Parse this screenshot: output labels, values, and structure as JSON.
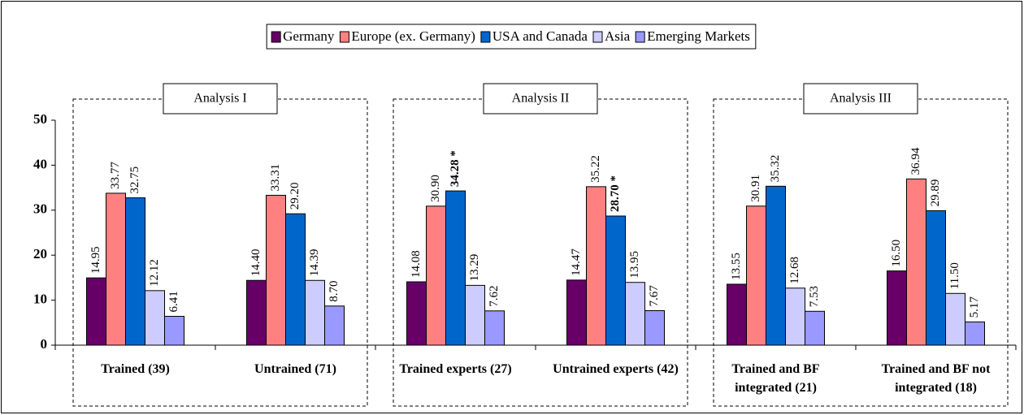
{
  "chart_data": {
    "type": "bar",
    "categories": [
      "Trained (39)",
      "Untrained (71)",
      "Trained experts (27)",
      "Untrained experts (42)",
      "Trained and BF integrated (21)",
      "Trained and BF not integrated (18)"
    ],
    "series": [
      {
        "name": "Germany",
        "color": "#660066",
        "values": [
          14.95,
          14.4,
          14.08,
          14.47,
          13.55,
          16.5
        ],
        "value_labels": [
          "14.95",
          "14.40",
          "14.08",
          "14.47",
          "13.55",
          "16.50"
        ]
      },
      {
        "name": "Europe (ex. Germany)",
        "color": "#ff8080",
        "values": [
          33.77,
          33.31,
          30.9,
          35.22,
          30.91,
          36.94
        ],
        "value_labels": [
          "33.77",
          "33.31",
          "30.90",
          "35.22",
          "30.91",
          "36.94"
        ]
      },
      {
        "name": "USA and Canada",
        "color": "#0066cc",
        "values": [
          32.75,
          29.2,
          34.28,
          28.7,
          35.32,
          29.89
        ],
        "value_labels": [
          "32.75",
          "29.20",
          "34.28 *",
          "28.70 *",
          "35.32",
          "29.89"
        ]
      },
      {
        "name": "Asia",
        "color": "#ccccff",
        "values": [
          12.12,
          14.39,
          13.29,
          13.95,
          12.68,
          11.5
        ],
        "value_labels": [
          "12.12",
          "14.39",
          "13.29",
          "13.95",
          "12.68",
          "11.50"
        ]
      },
      {
        "name": "Emerging Markets",
        "color": "#9999ff",
        "values": [
          6.41,
          8.7,
          7.62,
          7.67,
          7.53,
          5.17
        ],
        "value_labels": [
          "6.41",
          "8.70",
          "7.62",
          "7.67",
          "7.53",
          "5.17"
        ]
      }
    ],
    "annotations": [
      "Analysis I",
      "Analysis II",
      "Analysis III"
    ],
    "ylim": [
      0,
      50
    ],
    "yticks": [
      0,
      10,
      20,
      30,
      40,
      50
    ],
    "legend": "top"
  }
}
